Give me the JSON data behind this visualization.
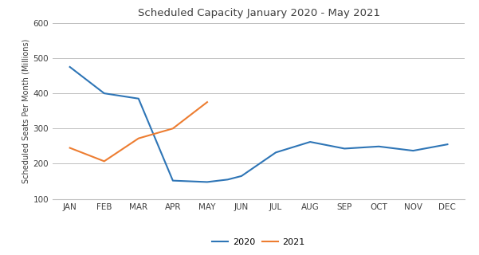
{
  "title": "Scheduled Capacity January 2020 - May 2021",
  "ylabel": "Scheduled Seats Per Month (Millions)",
  "months": [
    "JAN",
    "FEB",
    "MAR",
    "APR",
    "MAY",
    "JUN",
    "JUL",
    "AUG",
    "SEP",
    "OCT",
    "NOV",
    "DEC"
  ],
  "line_2020": [
    475,
    400,
    385,
    152,
    148,
    155,
    165,
    232,
    262,
    243,
    249,
    237,
    255
  ],
  "line_2020_x": [
    0,
    1,
    2,
    3,
    4,
    4.6,
    5,
    6,
    7,
    8,
    9,
    10,
    11
  ],
  "line_2021": [
    245,
    207,
    272,
    300,
    375
  ],
  "line_2021_x": [
    0,
    1,
    2,
    3,
    4
  ],
  "color_2020": "#2E75B6",
  "color_2021": "#ED7D31",
  "ylim": [
    100,
    600
  ],
  "yticks": [
    100,
    200,
    300,
    400,
    500,
    600
  ],
  "legend_labels": [
    "2020",
    "2021"
  ],
  "background_color": "#FFFFFF",
  "grid_color": "#BFBFBF"
}
